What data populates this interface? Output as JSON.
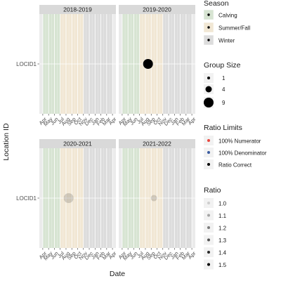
{
  "chart_data": {
    "type": "scatter",
    "xlabel": "Date",
    "ylabel": "Location ID",
    "y_categories": [
      "LOCID1"
    ],
    "x_ticks": [
      "Apr",
      "May",
      "Jun",
      "Jul",
      "Aug",
      "Sep",
      "Oct",
      "Nov",
      "Dec",
      "Jan",
      "Feb",
      "Mar",
      "Apr"
    ],
    "season_bands": [
      {
        "name": "Calving",
        "start": "Apr",
        "end": "Jul",
        "color": "#d7e4d2"
      },
      {
        "name": "Summer/Fall",
        "start": "Jul",
        "end": "Nov",
        "color": "#f1e7d4"
      },
      {
        "name": "Winter",
        "start": "Nov",
        "end": "Apr",
        "color": "#dcdcdc"
      }
    ],
    "panels": [
      {
        "title": "2018-2019",
        "points": []
      },
      {
        "title": "2019-2020",
        "points": [
          {
            "location": "LOCID1",
            "date": "2019-08-15",
            "group_size": 9,
            "ratio": 1.5,
            "ratio_limit": "Ratio Correct"
          }
        ]
      },
      {
        "title": "2020-2021",
        "points": [
          {
            "location": "LOCID1",
            "date": "2020-08-15",
            "group_size": 9,
            "ratio": 1.0,
            "ratio_limit": "Ratio Correct"
          }
        ]
      },
      {
        "title": "2021-2022",
        "points": [
          {
            "location": "LOCID1",
            "date": "2021-09-15",
            "group_size": 4,
            "ratio": 1.0,
            "ratio_limit": "Ratio Correct"
          }
        ]
      }
    ],
    "legends": [
      {
        "title": "Season",
        "type": "fill",
        "entries": [
          {
            "label": "Calving",
            "color": "#d7e4d2"
          },
          {
            "label": "Summer/Fall",
            "color": "#f1e7d4"
          },
          {
            "label": "Winter",
            "color": "#dcdcdc"
          }
        ]
      },
      {
        "title": "Group Size",
        "type": "size",
        "entries": [
          {
            "label": "1",
            "value": 1
          },
          {
            "label": "4",
            "value": 4
          },
          {
            "label": "9",
            "value": 9
          }
        ]
      },
      {
        "title": "Ratio Limits",
        "type": "color",
        "entries": [
          {
            "label": "100% Numerator",
            "color": "#e8473f"
          },
          {
            "label": "100% Denominator",
            "color": "#3a5ba0"
          },
          {
            "label": "Ratio Correct",
            "color": "#000000"
          }
        ]
      },
      {
        "title": "Ratio",
        "type": "alpha",
        "entries": [
          {
            "label": "1.0",
            "value": 1.0
          },
          {
            "label": "1.1",
            "value": 1.1
          },
          {
            "label": "1.2",
            "value": 1.2
          },
          {
            "label": "1.3",
            "value": 1.3
          },
          {
            "label": "1.4",
            "value": 1.4
          },
          {
            "label": "1.5",
            "value": 1.5
          }
        ]
      }
    ]
  }
}
